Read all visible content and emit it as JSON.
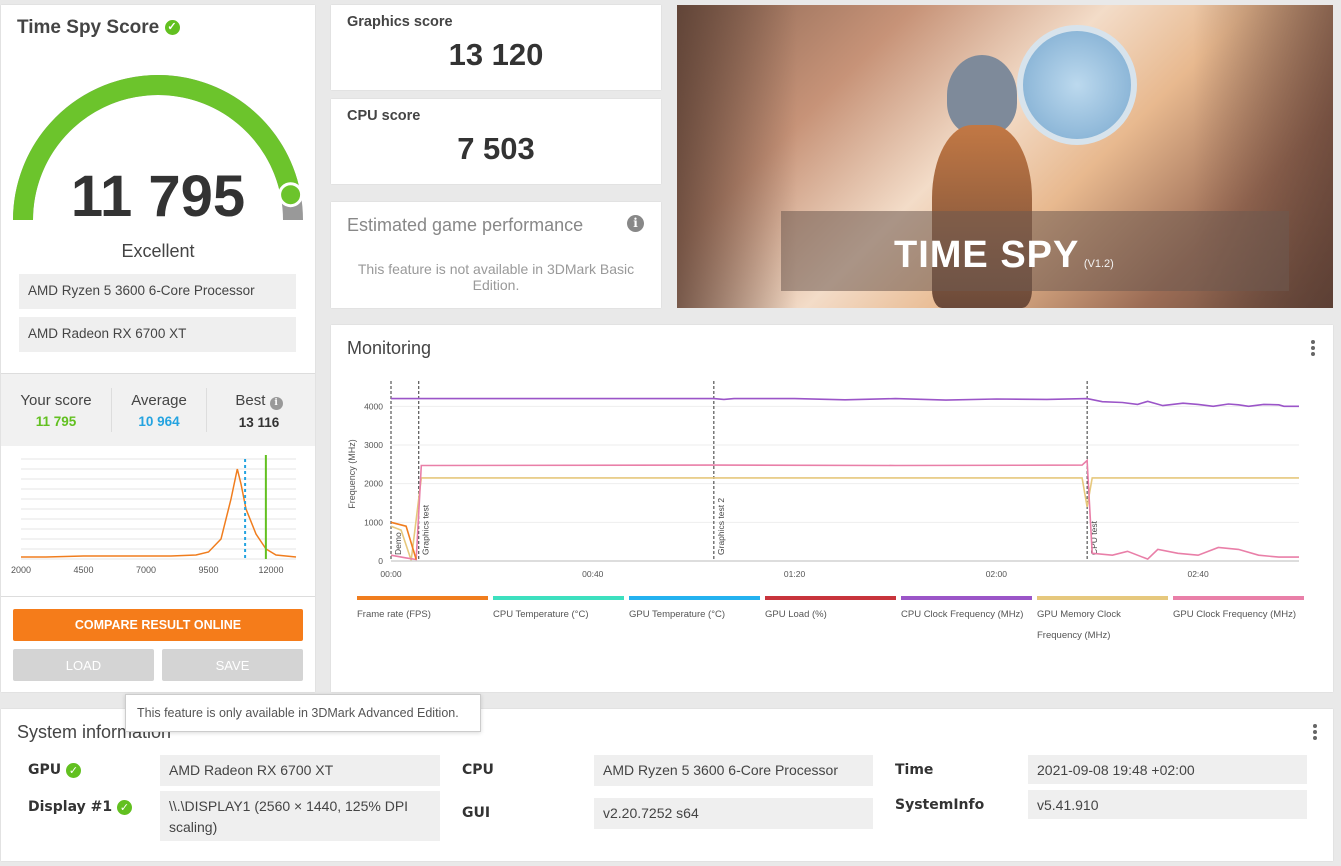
{
  "score_panel": {
    "title": "Time Spy Score",
    "score": "11 795",
    "score_fraction": 0.94,
    "rating": "Excellent",
    "cpu_name": "AMD Ryzen 5 3600 6-Core Processor",
    "gpu_name": "AMD Radeon RX 6700 XT",
    "comparison": {
      "your_label": "Your score",
      "your_value": "11 795",
      "avg_label": "Average",
      "avg_value": "10 964",
      "best_label": "Best",
      "best_value": "13 116"
    },
    "distribution": {
      "x_ticks": [
        "2000",
        "4500",
        "7000",
        "9500",
        "12000"
      ],
      "xlim": [
        2000,
        13000
      ],
      "your_score": 11795,
      "average": 10964,
      "curve": [
        [
          2000,
          0.02
        ],
        [
          3000,
          0.02
        ],
        [
          4500,
          0.03
        ],
        [
          6000,
          0.03
        ],
        [
          7000,
          0.03
        ],
        [
          8000,
          0.03
        ],
        [
          9000,
          0.04
        ],
        [
          9500,
          0.07
        ],
        [
          10000,
          0.2
        ],
        [
          10400,
          0.6
        ],
        [
          10650,
          0.9
        ],
        [
          10800,
          0.75
        ],
        [
          11000,
          0.5
        ],
        [
          11400,
          0.25
        ],
        [
          11800,
          0.1
        ],
        [
          12200,
          0.04
        ],
        [
          13000,
          0.02
        ]
      ],
      "colors": {
        "curve": "#f07d1e",
        "your": "#62c020",
        "average": "#24a3e0"
      }
    },
    "compare_label": "COMPARE RESULT ONLINE",
    "load_label": "LOAD",
    "save_label": "SAVE"
  },
  "tooltip": "This feature is only available in 3DMark Advanced Edition.",
  "scores": {
    "graphics_label": "Graphics score",
    "graphics_value": "13 120",
    "cpu_label": "CPU score",
    "cpu_value": "7 503"
  },
  "estimated": {
    "title": "Estimated game performance",
    "message": "This feature is not available in 3DMark Basic Edition."
  },
  "banner": {
    "title": "TIME SPY",
    "version": "(V1.2)"
  },
  "monitoring": {
    "title": "Monitoring",
    "ylabel": "Frequency (MHz)",
    "y_ticks": [
      "4000",
      "3000",
      "2000",
      "1000",
      "0"
    ],
    "x_ticks": [
      "00:00",
      "00:40",
      "01:20",
      "02:00",
      "02:40"
    ],
    "markers": [
      {
        "label": "Demo",
        "t": 0
      },
      {
        "label": "Graphics test",
        "t": 5.5
      },
      {
        "label": "Graphics test 2",
        "t": 64
      },
      {
        "label": "CPU test",
        "t": 138
      }
    ],
    "legend": [
      {
        "label": "Frame rate (FPS)",
        "color": "#f07d1e"
      },
      {
        "label": "CPU Temperature (°C)",
        "color": "#3de0bf"
      },
      {
        "label": "GPU Temperature (°C)",
        "color": "#24b2f0"
      },
      {
        "label": "GPU Load (%)",
        "color": "#c8343c"
      },
      {
        "label": "CPU Clock Frequency (MHz)",
        "color": "#9b55c8"
      },
      {
        "label": "GPU Memory Clock Frequency (MHz)",
        "color": "#e6c87d"
      },
      {
        "label": "GPU Clock Frequency (MHz)",
        "color": "#e97fa8"
      }
    ]
  },
  "system": {
    "title": "System information",
    "gpu_label": "GPU",
    "gpu_value": "AMD Radeon RX 6700 XT",
    "display_label": "Display #1",
    "display_value": "\\\\.\\DISPLAY1 (2560 × 1440, 125% DPI scaling)",
    "cpu_label": "CPU",
    "cpu_value": "AMD Ryzen 5 3600 6-Core Processor",
    "gui_label": "GUI",
    "gui_value": "v2.20.7252 s64",
    "time_label": "Time",
    "time_value": "2021-09-08 19:48 +02:00",
    "sysinfo_label": "SystemInfo",
    "sysinfo_value": "v5.41.910"
  }
}
